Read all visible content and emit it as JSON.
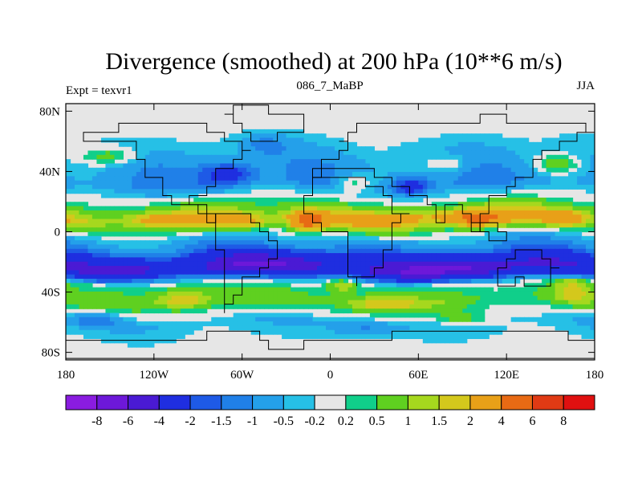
{
  "chart_data": {
    "type": "heatmap",
    "title": "Divergence (smoothed) at 200 hPa (10**6 m/s)",
    "left_label": "Expt = texvr1",
    "center_label": "086_7_MaBP",
    "right_label": "JJA",
    "x_ticks": [
      {
        "value": -180,
        "label": "180"
      },
      {
        "value": -120,
        "label": "120W"
      },
      {
        "value": -60,
        "label": "60W"
      },
      {
        "value": 0,
        "label": "0"
      },
      {
        "value": 60,
        "label": "60E"
      },
      {
        "value": 120,
        "label": "120E"
      },
      {
        "value": 180,
        "label": "180"
      }
    ],
    "y_ticks": [
      {
        "value": 80,
        "label": "80N"
      },
      {
        "value": 40,
        "label": "40N"
      },
      {
        "value": 0,
        "label": "0"
      },
      {
        "value": -40,
        "label": "40S"
      },
      {
        "value": -80,
        "label": "80S"
      }
    ],
    "xlim": [
      -180,
      180
    ],
    "ylim": [
      -85,
      85
    ],
    "colorbar": {
      "levels": [
        "-8",
        "-6",
        "-4",
        "-2",
        "-1.5",
        "-1",
        "-0.5",
        "-0.2",
        "0.2",
        "0.5",
        "1",
        "1.5",
        "2",
        "4",
        "6",
        "8"
      ],
      "colors": [
        "#8a1ce0",
        "#6d18d9",
        "#4a1ad4",
        "#1f2ee0",
        "#1e5ae6",
        "#2080e8",
        "#24a0ea",
        "#26c0e6",
        "#e6e6e6",
        "#10cf8a",
        "#5fd020",
        "#a6d81e",
        "#d4c81c",
        "#e8a018",
        "#e86a14",
        "#e03a14",
        "#e01010"
      ]
    },
    "bands": [
      {
        "lat": 72,
        "value": 0.1
      },
      {
        "lat": 48,
        "value": -0.9
      },
      {
        "lat": 32,
        "value": -1.3
      },
      {
        "lat": 20,
        "value": 0.4
      },
      {
        "lat": 8,
        "value": 2.4
      },
      {
        "lat": -2,
        "value": -0.3
      },
      {
        "lat": -12,
        "value": -1.6
      },
      {
        "lat": -24,
        "value": -4.2
      },
      {
        "lat": -34,
        "value": 0.3
      },
      {
        "lat": -46,
        "value": 0.9
      },
      {
        "lat": -60,
        "value": -0.6
      },
      {
        "lat": -78,
        "value": 0.0
      }
    ],
    "features": [
      {
        "lon": -15,
        "lat": 7,
        "dlon": 12,
        "dlat": 6,
        "value": 4.5
      },
      {
        "lon": -60,
        "lat": 6,
        "dlon": 18,
        "dlat": 5,
        "value": 1.6
      },
      {
        "lon": 100,
        "lat": 9,
        "dlon": 16,
        "dlat": 5,
        "value": 3.5
      },
      {
        "lon": 160,
        "lat": 9,
        "dlon": 14,
        "dlat": 5,
        "value": 2.2
      },
      {
        "lon": 65,
        "lat": 10,
        "dlon": 35,
        "dlat": 5,
        "value": 1.2
      },
      {
        "lon": -30,
        "lat": -22,
        "dlon": 40,
        "dlat": 8,
        "value": -3.5
      },
      {
        "lon": 90,
        "lat": -24,
        "dlon": 40,
        "dlat": 7,
        "value": -4.5
      },
      {
        "lon": -130,
        "lat": -24,
        "dlon": 30,
        "dlat": 6,
        "value": -2.5
      },
      {
        "lon": 8,
        "lat": -35,
        "dlon": 10,
        "dlat": 5,
        "value": 1.4
      },
      {
        "lon": -70,
        "lat": 38,
        "dlon": 18,
        "dlat": 8,
        "value": -2.0
      },
      {
        "lon": 15,
        "lat": 32,
        "dlon": 15,
        "dlat": 6,
        "value": 1.4
      },
      {
        "lon": 55,
        "lat": 30,
        "dlon": 12,
        "dlat": 6,
        "value": -2.2
      },
      {
        "lon": -150,
        "lat": 50,
        "dlon": 20,
        "dlat": 6,
        "value": 1.2
      },
      {
        "lon": 80,
        "lat": 45,
        "dlon": 15,
        "dlat": 6,
        "value": 1.0
      },
      {
        "lon": 155,
        "lat": 45,
        "dlon": 15,
        "dlat": 6,
        "value": 1.3
      },
      {
        "lon": -45,
        "lat": 58,
        "dlon": 15,
        "dlat": 6,
        "value": -0.8
      },
      {
        "lon": -100,
        "lat": -45,
        "dlon": 18,
        "dlat": 6,
        "value": 1.6
      },
      {
        "lon": 165,
        "lat": -38,
        "dlon": 12,
        "dlat": 8,
        "value": 1.3
      },
      {
        "lon": 35,
        "lat": -48,
        "dlon": 25,
        "dlat": 5,
        "value": 1.5
      },
      {
        "lon": -160,
        "lat": -58,
        "dlon": 18,
        "dlat": 5,
        "value": -1.2
      },
      {
        "lon": 25,
        "lat": -64,
        "dlon": 20,
        "dlat": 5,
        "value": -0.8
      },
      {
        "lon": 90,
        "lat": -58,
        "dlon": 20,
        "dlat": 5,
        "value": 1.0
      },
      {
        "lon": -120,
        "lat": 8,
        "dlon": 20,
        "dlat": 4,
        "value": 1.1
      }
    ]
  }
}
